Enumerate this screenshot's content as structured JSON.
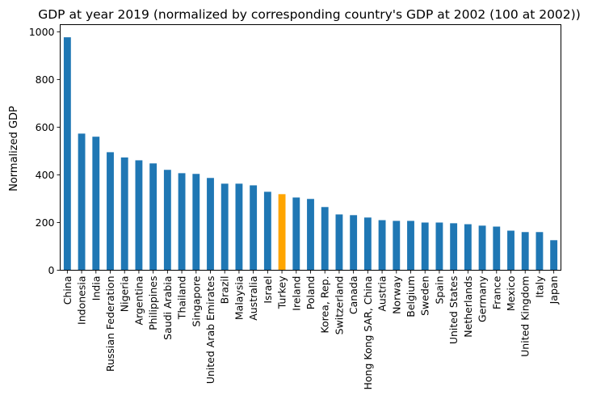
{
  "chart_data": {
    "type": "bar",
    "title": "GDP at year 2019 (normalized by corresponding country's GDP at 2002 (100 at 2002))",
    "xlabel": "",
    "ylabel": "Normalized GDP",
    "ylim": [
      0,
      1030
    ],
    "yticks": [
      0,
      200,
      400,
      600,
      800,
      1000
    ],
    "grid": false,
    "categories": [
      "China",
      "Indonesia",
      "India",
      "Russian Federation",
      "Nigeria",
      "Argentina",
      "Philippines",
      "Saudi Arabia",
      "Thailand",
      "Singapore",
      "United Arab Emirates",
      "Brazil",
      "Malaysia",
      "Australia",
      "Israel",
      "Turkey",
      "Ireland",
      "Poland",
      "Korea, Rep.",
      "Switzerland",
      "Canada",
      "Hong Kong SAR, China",
      "Austria",
      "Norway",
      "Belgium",
      "Sweden",
      "Spain",
      "United States",
      "Netherlands",
      "Germany",
      "France",
      "Mexico",
      "United Kingdom",
      "Italy",
      "Japan"
    ],
    "values": [
      977,
      573,
      560,
      495,
      473,
      461,
      448,
      421,
      407,
      404,
      387,
      363,
      363,
      356,
      329,
      319,
      305,
      299,
      265,
      234,
      231,
      221,
      210,
      207,
      207,
      200,
      200,
      197,
      193,
      187,
      183,
      166,
      160,
      160,
      126
    ],
    "highlight": "Turkey",
    "colors": {
      "default": "#1f77b4",
      "highlight": "#ffa500"
    }
  }
}
